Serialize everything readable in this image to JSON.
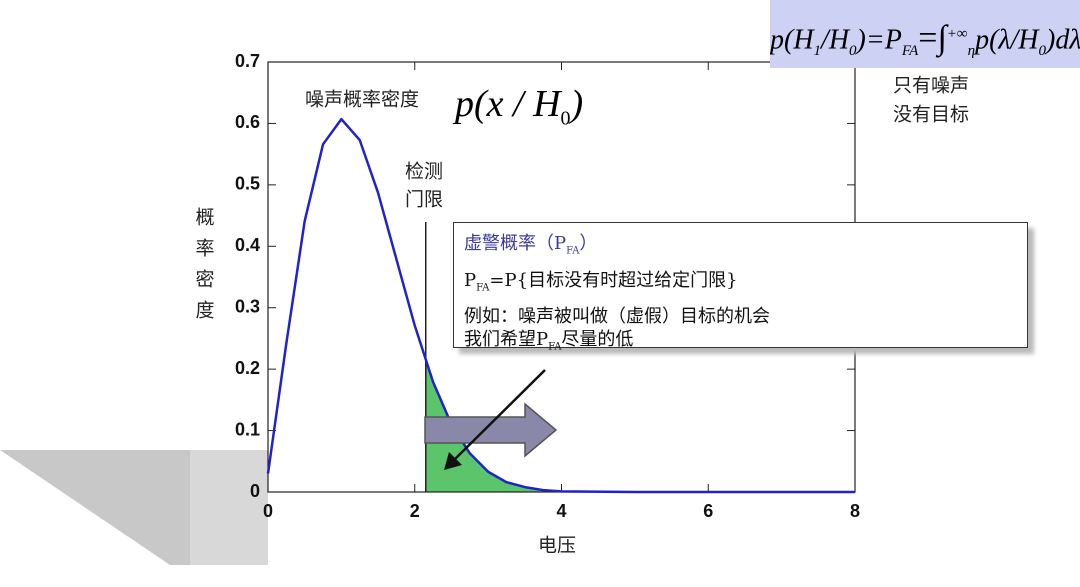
{
  "chart_data": {
    "type": "line",
    "x_label": "电压",
    "y_label": "概率密度",
    "x": [
      0,
      0.25,
      0.5,
      0.75,
      1,
      1.25,
      1.5,
      1.75,
      2,
      2.25,
      2.5,
      2.75,
      3,
      3.25,
      3.5,
      3.75,
      4,
      5,
      6,
      7,
      8
    ],
    "series": [
      {
        "name": "噪声概率密度",
        "color": "#2222cc",
        "values": [
          0.03,
          0.242,
          0.441,
          0.566,
          0.607,
          0.573,
          0.487,
          0.379,
          0.271,
          0.179,
          0.11,
          0.063,
          0.033,
          0.016,
          0.008,
          0.003,
          0.001,
          0,
          0,
          0,
          0
        ]
      }
    ],
    "threshold": 2.15,
    "threshold_label": [
      "检测",
      "门限"
    ],
    "fill_color": "#5cc46a",
    "xlim": [
      0,
      8
    ],
    "xticks": [
      0,
      2,
      4,
      6,
      8
    ],
    "ylim": [
      0,
      0.7
    ],
    "yticks": [
      0,
      0.1,
      0.2,
      0.3,
      0.4,
      0.5,
      0.6,
      0.7
    ],
    "curve_label": {
      "p": "p(x / H",
      "sub": "0",
      "close": ")"
    },
    "side_note": [
      "只有噪声",
      "没有目标"
    ],
    "formula": [
      "p(H",
      "1",
      "/H",
      "0",
      ")=P",
      "FA",
      "=∫",
      "+∞",
      "η",
      "p(λ/H",
      "0",
      ")dλ"
    ],
    "box": {
      "title": [
        "虚警概率（P",
        "FA",
        "）"
      ],
      "line1": [
        "P",
        "FA",
        "=P{目标没有时超过给定门限}"
      ],
      "line2": "例如：噪声被叫做（虚假）目标的机会",
      "line3": [
        "我们希望P",
        "FA",
        "尽量的低"
      ]
    }
  }
}
